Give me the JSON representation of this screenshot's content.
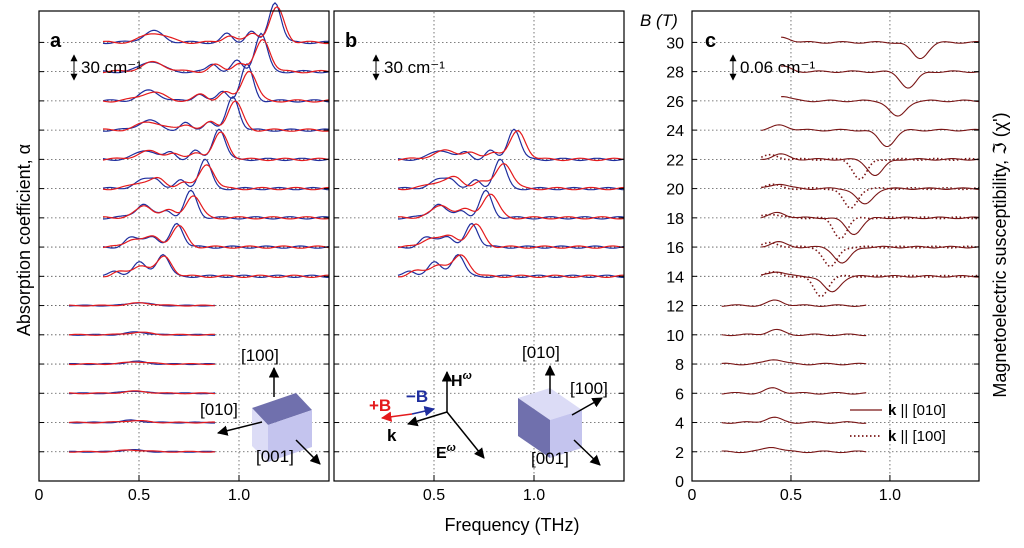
{
  "figure": {
    "xlabel": "Frequency (THz)",
    "ylabel_left": "Absorption coefficient, α",
    "ylabel_right": "Magnetoelectric susceptibility, ℑ (χ')",
    "b_axis_label": "B (T)"
  },
  "chart_data": [
    {
      "panel": "a",
      "type": "line",
      "title": "a",
      "scale_bar": "30 cm⁻¹",
      "xlim": [
        0,
        1.45
      ],
      "xticks": [
        "0",
        "0.5",
        "1.0"
      ],
      "xtick_values": [
        0,
        0.5,
        1.0
      ],
      "fields_T": [
        2,
        4,
        6,
        8,
        10,
        12,
        14,
        16,
        18,
        20,
        22,
        24,
        26,
        28,
        30
      ],
      "series": [
        {
          "name": "+B",
          "color": "#e41a1c"
        },
        {
          "name": "−B",
          "color": "#1f2e9e"
        }
      ],
      "crystal_axes": [
        "[100]",
        "[010]",
        "[001]"
      ]
    },
    {
      "panel": "b",
      "type": "line",
      "title": "b",
      "scale_bar": "30 cm⁻¹",
      "xlim": [
        0,
        1.45
      ],
      "xticks": [
        "0.5",
        "1.0"
      ],
      "xtick_values": [
        0.5,
        1.0
      ],
      "fields_T": [
        14,
        16,
        18,
        20,
        22
      ],
      "series": [
        {
          "name": "+B",
          "color": "#e41a1c"
        },
        {
          "name": "−B",
          "color": "#1f2e9e"
        }
      ],
      "legend": {
        "plus_b": "+B",
        "minus_b": "−B",
        "h_field": "H",
        "e_field": "E",
        "k_vec": "k",
        "omega": "ω"
      },
      "crystal_axes": [
        "[010]",
        "[100]",
        "[001]"
      ]
    },
    {
      "panel": "c",
      "type": "line",
      "title": "c",
      "scale_bar": "0.06 cm⁻¹",
      "xlim": [
        0,
        1.45
      ],
      "ylim": [
        0,
        31
      ],
      "xticks": [
        "0",
        "0.5",
        "1.0"
      ],
      "xtick_values": [
        0,
        0.5,
        1.0
      ],
      "yticks": [
        "0",
        "2",
        "4",
        "6",
        "8",
        "10",
        "12",
        "14",
        "16",
        "18",
        "20",
        "22",
        "24",
        "26",
        "28",
        "30"
      ],
      "ytick_values": [
        0,
        2,
        4,
        6,
        8,
        10,
        12,
        14,
        16,
        18,
        20,
        22,
        24,
        26,
        28,
        30
      ],
      "fields_T": [
        2,
        4,
        6,
        8,
        10,
        12,
        14,
        16,
        18,
        20,
        22,
        24,
        26,
        28,
        30
      ],
      "series": [
        {
          "name": "k || [010]",
          "style": "solid",
          "color": "#7a1616"
        },
        {
          "name": "k || [100]",
          "style": "dotted",
          "color": "#7a1616"
        }
      ],
      "legend_labels": [
        {
          "bold": "k",
          "rest": " || [010]"
        },
        {
          "bold": "k",
          "rest": " || [100]"
        }
      ]
    }
  ]
}
